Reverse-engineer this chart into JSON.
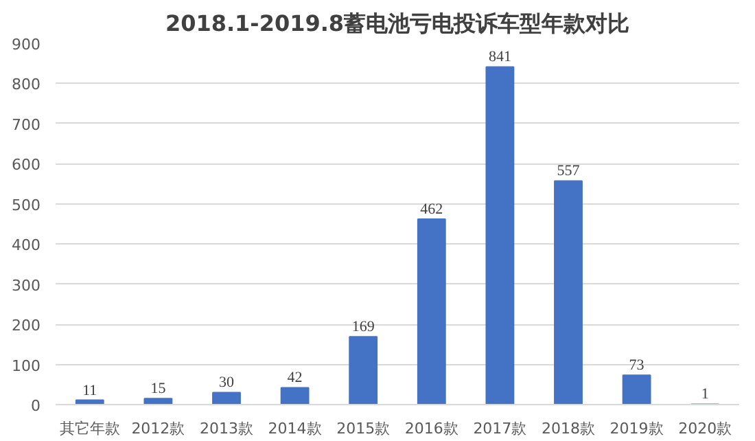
{
  "chart_data": {
    "type": "bar",
    "title": "2018.1-2019.8蓄电池亏电投诉车型年款对比",
    "categories": [
      "其它年款",
      "2012款",
      "2013款",
      "2014款",
      "2015款",
      "2016款",
      "2017款",
      "2018款",
      "2019款",
      "2020款"
    ],
    "values": [
      11,
      15,
      30,
      42,
      169,
      462,
      841,
      557,
      73,
      1
    ],
    "color": "#4472c4",
    "ylim": [
      0,
      900
    ],
    "yticks": [
      0,
      100,
      200,
      300,
      400,
      500,
      600,
      700,
      800,
      900
    ],
    "grid": "y",
    "data_labels": true
  }
}
